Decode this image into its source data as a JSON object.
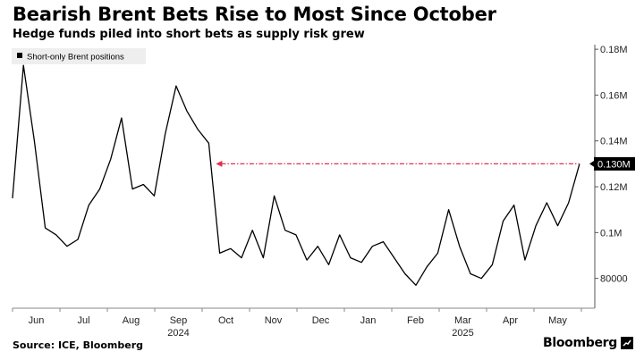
{
  "header": {
    "title": "Bearish Brent Bets Rise to Most Since October",
    "subtitle": "Hedge funds piled into short bets as supply risk grew"
  },
  "footer": {
    "source": "Source: ICE, Bloomberg",
    "brand": "Bloomberg"
  },
  "chart_data": {
    "type": "line",
    "title": "Bearish Brent Bets Rise to Most Since October",
    "subtitle": "Hedge funds piled into short bets as supply risk grew",
    "legend": {
      "label": "Short-only Brent positions",
      "placement": "top-left"
    },
    "ylim": [
      67000,
      182000
    ],
    "ytick_values": [
      80000,
      100000,
      120000,
      140000,
      160000,
      180000
    ],
    "ytick_labels": [
      "80000",
      "0.1M",
      "0.12M",
      "0.14M",
      "0.16M",
      "0.18M"
    ],
    "xlim": [
      0,
      12
    ],
    "xtick_values": [
      0.5,
      1.5,
      2.5,
      3.5,
      4.5,
      5.5,
      6.5,
      7.5,
      8.5,
      9.5,
      10.5,
      11.5
    ],
    "xtick_labels": [
      "Jun",
      "Jul",
      "Aug",
      "Sep",
      "Oct",
      "Nov",
      "Dec",
      "Jan",
      "Feb",
      "Mar",
      "Apr",
      "May"
    ],
    "year_labels": [
      {
        "label": "2024",
        "x": 3.5
      },
      {
        "label": "2025",
        "x": 9.5
      }
    ],
    "series": [
      {
        "name": "Short-only Brent positions",
        "x": [
          0,
          0.23,
          0.46,
          0.69,
          0.92,
          1.15,
          1.38,
          1.61,
          1.84,
          2.07,
          2.3,
          2.53,
          2.76,
          2.99,
          3.22,
          3.45,
          3.68,
          3.91,
          4.14,
          4.37,
          4.6,
          4.83,
          5.06,
          5.29,
          5.52,
          5.75,
          5.98,
          6.21,
          6.44,
          6.67,
          6.9,
          7.13,
          7.36,
          7.59,
          7.82,
          8.05,
          8.28,
          8.51,
          8.74,
          8.97,
          9.2,
          9.43,
          9.66,
          9.89,
          10.12,
          10.35,
          10.58,
          10.81,
          11.04,
          11.27,
          11.5,
          11.73,
          11.96
        ],
        "values": [
          115000,
          173000,
          140000,
          102000,
          99000,
          94000,
          97000,
          112000,
          119000,
          132000,
          150000,
          119000,
          121000,
          116000,
          143000,
          164000,
          153000,
          145000,
          139000,
          91000,
          93000,
          89000,
          101000,
          89000,
          116000,
          101000,
          99000,
          88000,
          94000,
          86000,
          99000,
          89000,
          87000,
          94000,
          96000,
          89000,
          82000,
          77000,
          85000,
          91000,
          110000,
          94000,
          82000,
          80000,
          86000,
          105000,
          112000,
          88000,
          103000,
          113000,
          103000,
          113000,
          130000
        ]
      }
    ],
    "annotation": {
      "type": "horizontal-arrow",
      "value": 130000,
      "label": "0.130M",
      "color": "#e0314b"
    }
  }
}
